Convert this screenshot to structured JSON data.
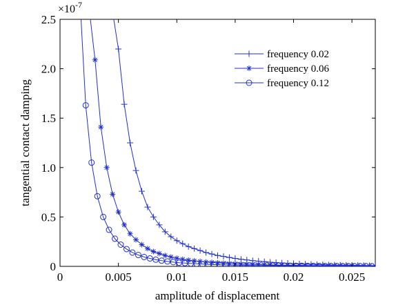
{
  "chart_data": {
    "type": "line",
    "title": "",
    "xlabel": "amplitude of displacement",
    "ylabel": "tangential contact damping",
    "y_multiplier_label": "×10",
    "y_multiplier_exponent": "-7",
    "xlim": [
      0,
      0.027
    ],
    "ylim": [
      0,
      2.5
    ],
    "x_ticks": [
      0,
      0.005,
      0.01,
      0.015,
      0.02,
      0.025
    ],
    "x_tick_labels": [
      "0",
      "0.005",
      "0.01",
      "0.015",
      "0.02",
      "0.025"
    ],
    "y_ticks": [
      0,
      0.5,
      1.0,
      1.5,
      2.0,
      2.5
    ],
    "y_tick_labels": [
      "0",
      "0.5",
      "1.0",
      "1.5",
      "2.0",
      "2.5"
    ],
    "grid": false,
    "legend_position": "top-right",
    "line_color": "#1f2fd0",
    "series": [
      {
        "name": "frequency 0.02",
        "marker": "plus",
        "x": [
          0.0046,
          0.005,
          0.0055,
          0.006,
          0.0065,
          0.007,
          0.0075,
          0.008,
          0.0085,
          0.009,
          0.0095,
          0.01,
          0.0105,
          0.011,
          0.0115,
          0.012,
          0.0125,
          0.013,
          0.0135,
          0.014,
          0.0145,
          0.015,
          0.0155,
          0.016,
          0.0165,
          0.017,
          0.0175,
          0.018,
          0.0185,
          0.019,
          0.0195,
          0.02,
          0.0205,
          0.021,
          0.0215,
          0.022,
          0.0225,
          0.023,
          0.0235,
          0.024,
          0.0245,
          0.025,
          0.0255,
          0.026,
          0.0265,
          0.027
        ],
        "y": [
          2.5,
          2.2,
          1.64,
          1.25,
          0.97,
          0.76,
          0.6,
          0.5,
          0.42,
          0.35,
          0.3,
          0.26,
          0.23,
          0.2,
          0.18,
          0.16,
          0.14,
          0.125,
          0.11,
          0.1,
          0.09,
          0.08,
          0.072,
          0.065,
          0.058,
          0.052,
          0.047,
          0.042,
          0.038,
          0.034,
          0.031,
          0.028,
          0.025,
          0.023,
          0.021,
          0.019,
          0.017,
          0.015,
          0.014,
          0.013,
          0.012,
          0.011,
          0.01,
          0.009,
          0.008,
          0.007
        ]
      },
      {
        "name": "frequency 0.06",
        "marker": "star",
        "x": [
          0.0026,
          0.003,
          0.0035,
          0.004,
          0.0045,
          0.005,
          0.0055,
          0.006,
          0.0065,
          0.007,
          0.0075,
          0.008,
          0.0085,
          0.009,
          0.0095,
          0.01,
          0.0105,
          0.011,
          0.0115,
          0.012,
          0.0125,
          0.013,
          0.0135,
          0.014,
          0.0145,
          0.015,
          0.0155,
          0.016,
          0.0165,
          0.017,
          0.0175,
          0.018,
          0.0185,
          0.019,
          0.0195,
          0.02,
          0.0205,
          0.021,
          0.0215,
          0.022,
          0.0225,
          0.023,
          0.0235,
          0.024,
          0.0245,
          0.025,
          0.0255,
          0.026,
          0.0265,
          0.027
        ],
        "y": [
          2.5,
          2.09,
          1.41,
          1.0,
          0.73,
          0.55,
          0.42,
          0.33,
          0.27,
          0.22,
          0.18,
          0.15,
          0.13,
          0.11,
          0.095,
          0.082,
          0.072,
          0.063,
          0.056,
          0.05,
          0.044,
          0.04,
          0.036,
          0.032,
          0.029,
          0.026,
          0.024,
          0.022,
          0.02,
          0.018,
          0.016,
          0.015,
          0.014,
          0.013,
          0.012,
          0.011,
          0.01,
          0.009,
          0.008,
          0.0075,
          0.007,
          0.0065,
          0.006,
          0.0055,
          0.005,
          0.0045,
          0.004,
          0.0035,
          0.003,
          0.003
        ]
      },
      {
        "name": "frequency 0.12",
        "marker": "circle",
        "x": [
          0.0018,
          0.0022,
          0.0027,
          0.0032,
          0.0037,
          0.0042,
          0.0047,
          0.0052,
          0.0057,
          0.0062,
          0.0067,
          0.0072,
          0.0077,
          0.0082,
          0.0087,
          0.0092,
          0.0097,
          0.0102,
          0.0107,
          0.0112,
          0.0117,
          0.0122,
          0.0127,
          0.0132,
          0.0137,
          0.0142,
          0.0147,
          0.0152,
          0.0157,
          0.0162,
          0.0167,
          0.0172,
          0.0177,
          0.0182,
          0.0187,
          0.0192,
          0.0197,
          0.0202,
          0.0207,
          0.0212,
          0.0217,
          0.0222,
          0.0227,
          0.0232,
          0.0237,
          0.0242,
          0.0247,
          0.0252,
          0.0257,
          0.0262,
          0.0267
        ],
        "y": [
          2.5,
          1.63,
          1.05,
          0.71,
          0.5,
          0.37,
          0.28,
          0.22,
          0.175,
          0.14,
          0.115,
          0.095,
          0.08,
          0.068,
          0.058,
          0.05,
          0.043,
          0.037,
          0.033,
          0.029,
          0.026,
          0.023,
          0.02,
          0.018,
          0.016,
          0.015,
          0.013,
          0.012,
          0.011,
          0.01,
          0.009,
          0.0085,
          0.008,
          0.0075,
          0.007,
          0.0065,
          0.006,
          0.0055,
          0.005,
          0.0047,
          0.0044,
          0.0041,
          0.0038,
          0.0035,
          0.0033,
          0.0031,
          0.0029,
          0.0027,
          0.0025,
          0.0023,
          0.0021
        ]
      }
    ]
  }
}
